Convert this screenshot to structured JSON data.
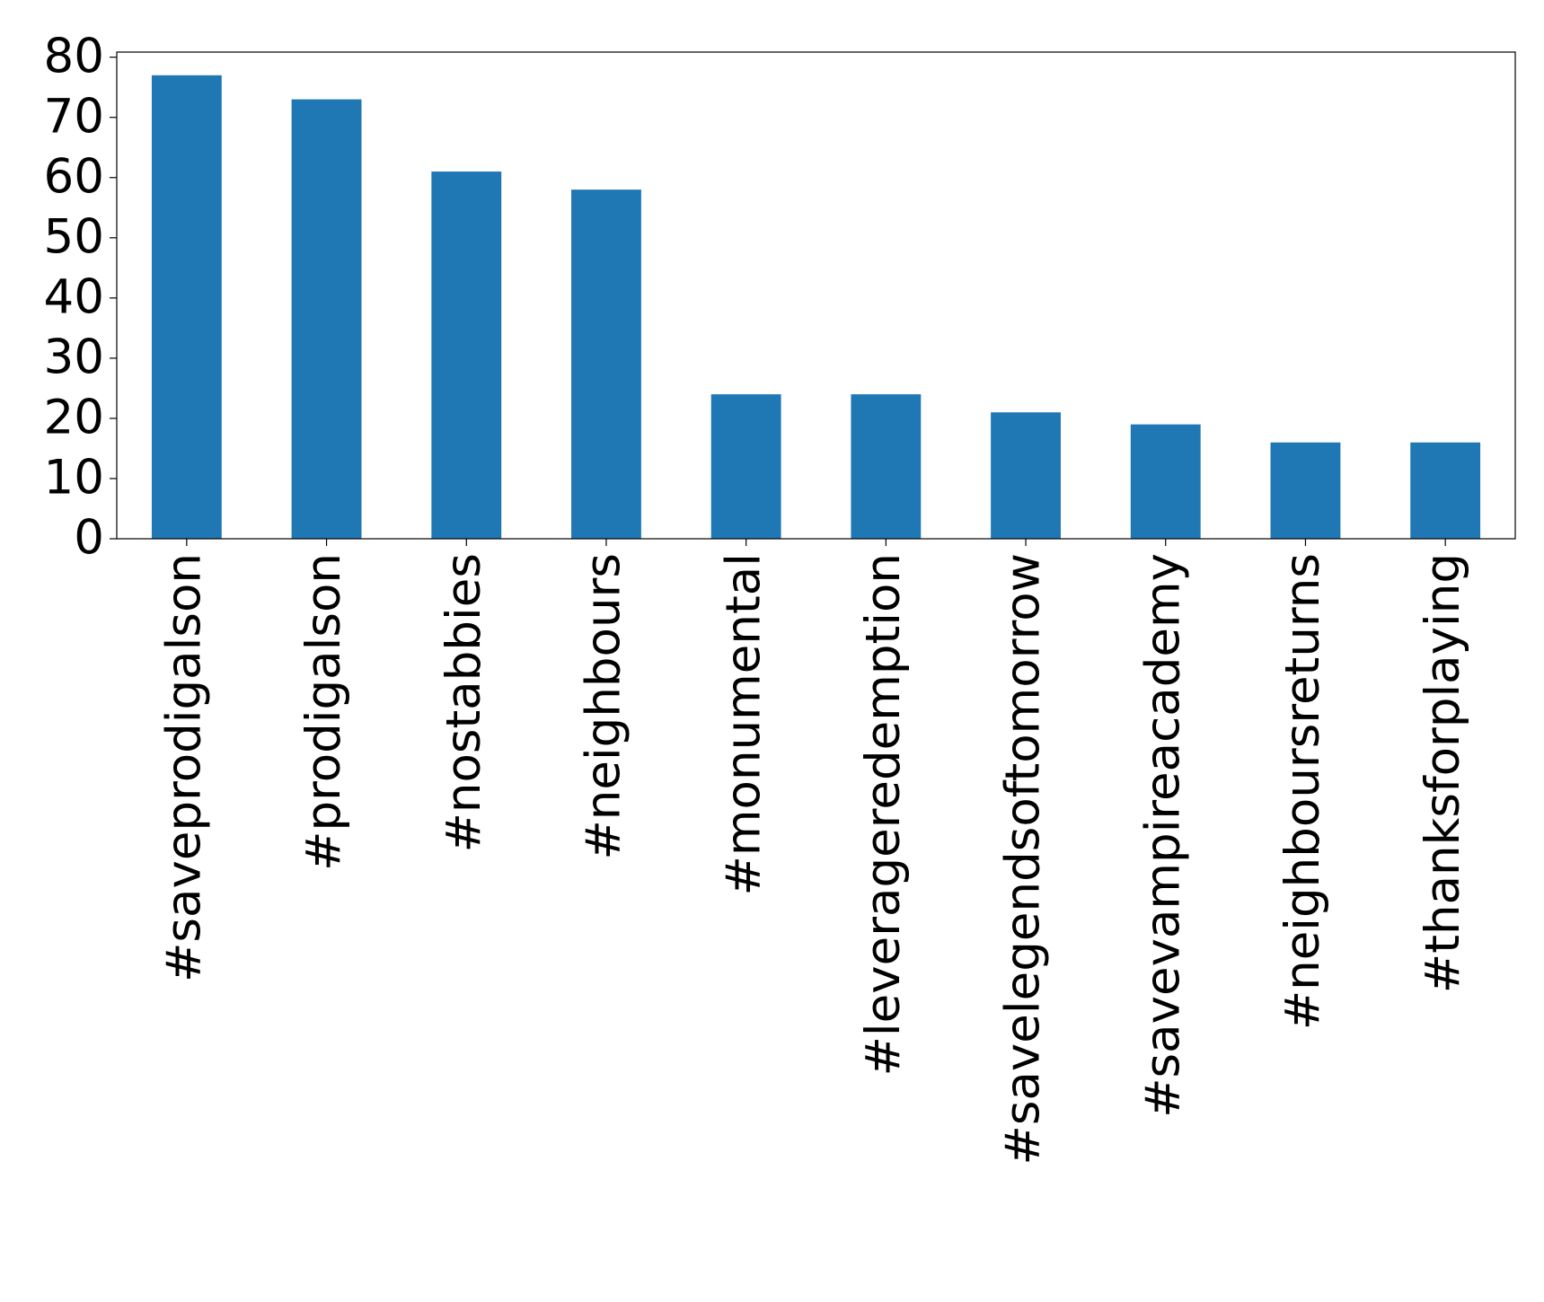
{
  "chart_data": {
    "type": "bar",
    "categories": [
      "#saveprodigalson",
      "#prodigalson",
      "#nostabbies",
      "#neighbours",
      "#monumental",
      "#leverageredemption",
      "#savelegendsoftomorrow",
      "#savevampireacademy",
      "#neighboursreturns",
      "#thanksforplaying"
    ],
    "values": [
      77,
      73,
      61,
      58,
      24,
      24,
      21,
      19,
      16,
      16
    ],
    "color": "#1f77b4",
    "ylim": [
      0,
      80.85
    ],
    "yticks": [
      0,
      10,
      20,
      30,
      40,
      50,
      60,
      70,
      80
    ],
    "grid": false
  }
}
